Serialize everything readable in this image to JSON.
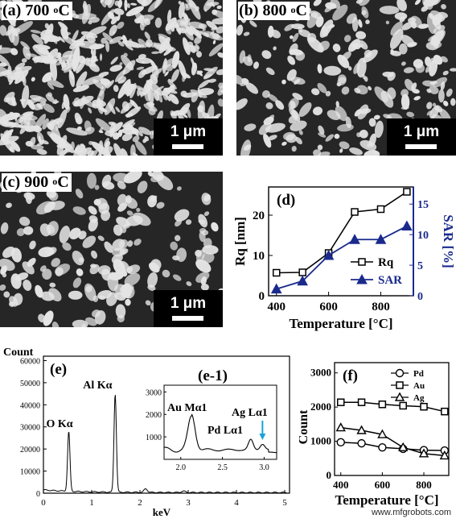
{
  "panels": {
    "a": {
      "letter": "(a)",
      "temp": "700",
      "unit_sup": "o",
      "unit_c": "C",
      "scale": "1 μm"
    },
    "b": {
      "letter": "(b)",
      "temp": "800",
      "unit_sup": "o",
      "unit_c": "C",
      "scale": "1 μm"
    },
    "c": {
      "letter": "(c)",
      "temp": "900",
      "unit_sup": "o",
      "unit_c": "C",
      "scale": "1 μm"
    }
  },
  "chart_data": [
    {
      "id": "d",
      "type": "line",
      "panel_label": "(d)",
      "x": [
        400,
        500,
        600,
        700,
        800,
        900
      ],
      "xlabel": "Temperature [°C]",
      "xlim": [
        370,
        925
      ],
      "xticks": [
        400,
        600,
        800
      ],
      "ylabel": "Rq [nm]",
      "ylim": [
        0,
        27
      ],
      "yticks": [
        0,
        10,
        20
      ],
      "y2label": "SAR [%]",
      "y2lim": [
        0,
        17.8
      ],
      "y2ticks": [
        0,
        5,
        10,
        15
      ],
      "legend_position": "bottom-right",
      "series": [
        {
          "name": "Rq",
          "axis": "left",
          "marker": "square",
          "values": [
            5.7,
            5.8,
            10.6,
            20.8,
            21.5,
            25.8
          ]
        },
        {
          "name": "SAR",
          "axis": "right",
          "marker": "triangle",
          "values": [
            1.1,
            2.4,
            6.6,
            9.2,
            9.2,
            11.4
          ]
        }
      ]
    },
    {
      "id": "e",
      "type": "line",
      "panel_label": "(e)",
      "ylabel": "Count",
      "xlabel": "keV",
      "xlim": [
        0,
        5.1
      ],
      "xticks": [
        0,
        1,
        2,
        3,
        4,
        5
      ],
      "ylim": [
        0,
        62000
      ],
      "yticks": [
        0,
        10000,
        20000,
        30000,
        40000,
        50000,
        60000
      ],
      "peaks": [
        {
          "label": "O Kα",
          "energy": 0.525,
          "counts": 27000
        },
        {
          "label": "Al Kα",
          "energy": 1.487,
          "counts": 44500
        }
      ]
    },
    {
      "id": "e-1",
      "type": "line",
      "panel_label": "(e-1)",
      "xlim": [
        1.8,
        3.15
      ],
      "xticks": [
        2.0,
        2.5,
        3.0
      ],
      "ylim": [
        0,
        3300
      ],
      "yticks": [
        1000,
        2000,
        3000
      ],
      "peaks": [
        {
          "label": "Au Mα1",
          "energy": 2.12,
          "counts": 2000
        },
        {
          "label": "Pd Lα1",
          "energy": 2.84,
          "counts": 830
        },
        {
          "label": "Ag Lα1",
          "energy": 2.98,
          "counts": 700
        }
      ]
    },
    {
      "id": "f",
      "type": "line",
      "panel_label": "(f)",
      "x": [
        400,
        500,
        600,
        700,
        800,
        900
      ],
      "xlabel": "Temperature [°C]",
      "xlim": [
        370,
        920
      ],
      "xticks": [
        400,
        600,
        800
      ],
      "ylabel": "Count",
      "ylim": [
        0,
        3300
      ],
      "yticks": [
        0,
        1000,
        2000,
        3000
      ],
      "legend_position": "top-right",
      "series": [
        {
          "name": "Pd",
          "marker": "circle",
          "values": [
            970,
            940,
            820,
            780,
            740,
            730
          ]
        },
        {
          "name": "Au",
          "marker": "square",
          "values": [
            2140,
            2140,
            2080,
            2040,
            2010,
            1870
          ]
        },
        {
          "name": "Ag",
          "marker": "triangle",
          "values": [
            1400,
            1320,
            1200,
            820,
            640,
            580
          ]
        }
      ]
    }
  ],
  "watermark": "www.mfgrobots.com"
}
